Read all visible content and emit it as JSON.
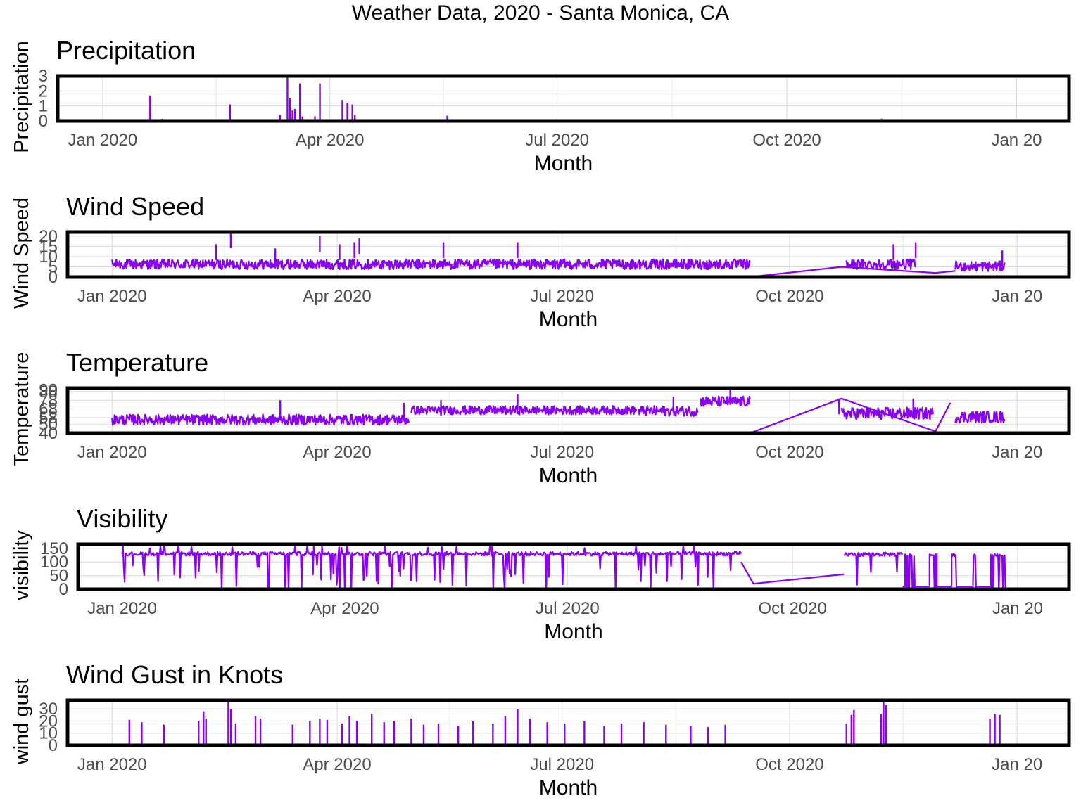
{
  "figure": {
    "title": "Weather Data, 2020 - Santa Monica, CA",
    "line_color": "#8a00f0"
  },
  "chart_data": [
    {
      "type": "line",
      "title": "Precipitation",
      "xlabel": "Month",
      "ylabel": "Precipitation",
      "x_ticks": [
        "Jan 2020",
        "Apr 2020",
        "Jul 2020",
        "Oct 2020",
        "Jan 20"
      ],
      "xlim": [
        "2019-12-14",
        "2021-01-22"
      ],
      "ylim": [
        0,
        3
      ],
      "y_ticks": [
        0,
        1,
        2,
        3
      ],
      "grid": true,
      "series": [
        {
          "style": "spikes",
          "points": [
            [
              "2020-01-20",
              1.7
            ],
            [
              "2020-01-25",
              0.15
            ],
            [
              "2020-02-21",
              1.1
            ],
            [
              "2020-03-12",
              0.4
            ],
            [
              "2020-03-15",
              3.0
            ],
            [
              "2020-03-16",
              1.5
            ],
            [
              "2020-03-17",
              0.7
            ],
            [
              "2020-03-18",
              0.8
            ],
            [
              "2020-03-20",
              2.5
            ],
            [
              "2020-03-21",
              0.3
            ],
            [
              "2020-03-26",
              0.3
            ],
            [
              "2020-03-28",
              2.5
            ],
            [
              "2020-04-06",
              1.4
            ],
            [
              "2020-04-08",
              1.2
            ],
            [
              "2020-04-10",
              1.1
            ],
            [
              "2020-04-11",
              0.4
            ],
            [
              "2020-05-18",
              0.35
            ],
            [
              "2020-11-08",
              0.15
            ]
          ]
        }
      ]
    },
    {
      "type": "line",
      "title": "Wind Speed",
      "xlabel": "Month",
      "ylabel": "Wind Speed",
      "x_ticks": [
        "Jan 2020",
        "Apr 2020",
        "Jul 2020",
        "Oct 2020",
        "Jan 20"
      ],
      "xlim": [
        "2019-12-14",
        "2021-01-22"
      ],
      "ylim": [
        0,
        22
      ],
      "y_ticks": [
        0,
        5,
        10,
        15,
        20
      ],
      "grid": true,
      "series": [
        {
          "style": "oscillating",
          "segments": [
            {
              "from": "2020-01-01",
              "to": "2020-09-15",
              "base": 6,
              "amplitude": 5
            },
            {
              "from": "2020-10-24",
              "to": "2020-11-21",
              "base": 6,
              "amplitude": 5
            },
            {
              "from": "2020-12-07",
              "to": "2020-12-27",
              "base": 5,
              "amplitude": 5
            }
          ],
          "peaks": [
            [
              "2020-02-12",
              16
            ],
            [
              "2020-02-18",
              22
            ],
            [
              "2020-03-07",
              14
            ],
            [
              "2020-03-25",
              20
            ],
            [
              "2020-04-02",
              16
            ],
            [
              "2020-04-08",
              17
            ],
            [
              "2020-04-10",
              19
            ],
            [
              "2020-05-14",
              17
            ],
            [
              "2020-06-13",
              17
            ],
            [
              "2020-11-12",
              16
            ],
            [
              "2020-11-21",
              17
            ],
            [
              "2020-12-26",
              13
            ]
          ],
          "connectors": [
            [
              "2020-09-15",
              0
            ],
            [
              "2020-10-22",
              5
            ],
            [
              "2020-11-29",
              2
            ],
            [
              "2020-12-07",
              3
            ]
          ]
        }
      ]
    },
    {
      "type": "line",
      "title": "Temperature",
      "xlabel": "Month",
      "ylabel": "Temperature",
      "x_ticks": [
        "Jan 2020",
        "Apr 2020",
        "Jul 2020",
        "Oct 2020",
        "Jan 20"
      ],
      "xlim": [
        "2019-12-14",
        "2021-01-22"
      ],
      "ylim": [
        40,
        92
      ],
      "y_ticks": [
        40,
        50,
        58,
        68,
        78,
        88,
        90
      ],
      "grid": true,
      "series": [
        {
          "style": "oscillating",
          "segments": [
            {
              "from": "2020-01-01",
              "to": "2020-04-30",
              "base": 55,
              "amplitude": 12
            },
            {
              "from": "2020-05-01",
              "to": "2020-07-31",
              "base": 66,
              "amplitude": 10
            },
            {
              "from": "2020-08-01",
              "to": "2020-08-25",
              "base": 65,
              "amplitude": 12
            },
            {
              "from": "2020-08-26",
              "to": "2020-09-15",
              "base": 76,
              "amplitude": 12
            },
            {
              "from": "2020-10-22",
              "to": "2020-11-28",
              "base": 62,
              "amplitude": 14
            },
            {
              "from": "2020-12-07",
              "to": "2020-12-27",
              "base": 58,
              "amplitude": 14
            }
          ],
          "peaks": [
            [
              "2020-03-09",
              78
            ],
            [
              "2020-04-28",
              75
            ],
            [
              "2020-05-13",
              78
            ],
            [
              "2020-06-13",
              85
            ],
            [
              "2020-08-15",
              82
            ],
            [
              "2020-09-07",
              91
            ],
            [
              "2020-10-21",
              80
            ],
            [
              "2020-11-20",
              80
            ]
          ],
          "connectors": [
            [
              "2020-09-15",
              40
            ],
            [
              "2020-10-22",
              80
            ],
            [
              "2020-11-29",
              42
            ],
            [
              "2020-12-05",
              75
            ]
          ]
        }
      ]
    },
    {
      "type": "line",
      "title": "Visibility",
      "xlabel": "Month",
      "ylabel": "visibility",
      "x_ticks": [
        "Jan 2020",
        "Apr 2020",
        "Jul 2020",
        "Oct 2020",
        "Jan 20"
      ],
      "xlim": [
        "2019-12-14",
        "2021-01-22"
      ],
      "ylim": [
        0,
        165
      ],
      "y_ticks": [
        0,
        50,
        100,
        150
      ],
      "grid": true,
      "series": [
        {
          "style": "dropouts",
          "segments": [
            {
              "from": "2020-01-01",
              "to": "2020-09-10",
              "base": 130
            },
            {
              "from": "2020-10-22",
              "to": "2020-11-15",
              "base": 128
            }
          ],
          "connectors": [
            [
              "2020-09-10",
              100
            ],
            [
              "2020-09-15",
              20
            ],
            [
              "2020-10-22",
              55
            ]
          ],
          "late_blocks": [
            [
              "2020-11-16",
              "2020-11-20"
            ],
            [
              "2020-11-26",
              "2020-11-29"
            ],
            [
              "2020-12-05",
              "2020-12-07"
            ],
            [
              "2020-12-13",
              "2020-12-15"
            ],
            [
              "2020-12-21",
              "2020-12-27"
            ]
          ]
        }
      ]
    },
    {
      "type": "line",
      "title": "Wind Gust in Knots",
      "xlabel": "Month",
      "ylabel": "wind gust",
      "x_ticks": [
        "Jan 2020",
        "Apr 2020",
        "Jul 2020",
        "Oct 2020",
        "Jan 20"
      ],
      "xlim": [
        "2019-12-14",
        "2021-01-22"
      ],
      "ylim": [
        0,
        37
      ],
      "y_ticks": [
        0,
        10,
        20,
        30
      ],
      "grid": true,
      "series": [
        {
          "style": "spikes",
          "points": [
            [
              "2020-01-08",
              21
            ],
            [
              "2020-01-13",
              19
            ],
            [
              "2020-01-22",
              17
            ],
            [
              "2020-02-05",
              20
            ],
            [
              "2020-02-07",
              28
            ],
            [
              "2020-02-08",
              22
            ],
            [
              "2020-02-17",
              37
            ],
            [
              "2020-02-18",
              30
            ],
            [
              "2020-02-20",
              18
            ],
            [
              "2020-02-28",
              24
            ],
            [
              "2020-03-01",
              22
            ],
            [
              "2020-03-14",
              17
            ],
            [
              "2020-03-21",
              20
            ],
            [
              "2020-03-25",
              22
            ],
            [
              "2020-03-28",
              21
            ],
            [
              "2020-04-03",
              18
            ],
            [
              "2020-04-06",
              24
            ],
            [
              "2020-04-09",
              20
            ],
            [
              "2020-04-15",
              26
            ],
            [
              "2020-04-20",
              19
            ],
            [
              "2020-04-24",
              20
            ],
            [
              "2020-05-01",
              22
            ],
            [
              "2020-05-06",
              17
            ],
            [
              "2020-05-12",
              18
            ],
            [
              "2020-05-20",
              16
            ],
            [
              "2020-05-26",
              20
            ],
            [
              "2020-06-03",
              18
            ],
            [
              "2020-06-08",
              24
            ],
            [
              "2020-06-13",
              30
            ],
            [
              "2020-06-18",
              22
            ],
            [
              "2020-06-25",
              19
            ],
            [
              "2020-07-02",
              18
            ],
            [
              "2020-07-10",
              20
            ],
            [
              "2020-07-18",
              16
            ],
            [
              "2020-07-25",
              18
            ],
            [
              "2020-08-03",
              19
            ],
            [
              "2020-08-12",
              17
            ],
            [
              "2020-08-22",
              16
            ],
            [
              "2020-08-29",
              15
            ],
            [
              "2020-09-05",
              17
            ],
            [
              "2020-10-24",
              18
            ],
            [
              "2020-10-26",
              25
            ],
            [
              "2020-10-27",
              29
            ],
            [
              "2020-11-07",
              26
            ],
            [
              "2020-11-08",
              37
            ],
            [
              "2020-11-09",
              33
            ],
            [
              "2020-12-21",
              22
            ],
            [
              "2020-12-23",
              26
            ],
            [
              "2020-12-25",
              25
            ]
          ]
        }
      ]
    }
  ]
}
